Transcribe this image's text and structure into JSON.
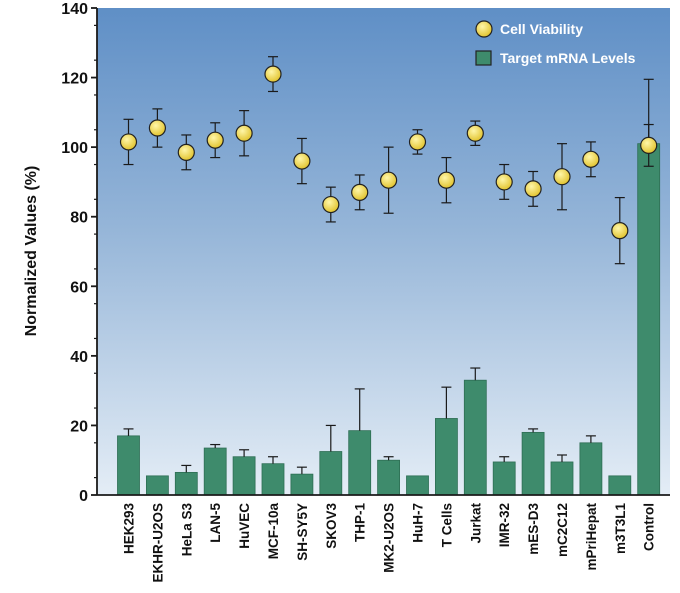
{
  "chart_data": {
    "type": "bar",
    "title": "",
    "xlabel": "",
    "ylabel": "Normalized Values (%)",
    "ylim": [
      0,
      140
    ],
    "yticks": [
      0,
      20,
      40,
      60,
      80,
      100,
      120,
      140
    ],
    "grid": false,
    "legend_position": "top-right",
    "categories": [
      "HEK293",
      "EKHR-U2OS",
      "HeLa S3",
      "LAN-5",
      "HuVEC",
      "MCF-10a",
      "SH-SY5Y",
      "SKOV3",
      "THP-1",
      "MK2-U2OS",
      "HuH-7",
      "T Cells",
      "Jurkat",
      "IMR-32",
      "mES-D3",
      "mC2C12",
      "mPriHepat",
      "m3T3L1",
      "Control"
    ],
    "series": [
      {
        "name": "Cell Viability",
        "kind": "scatter",
        "color": "#f0d648",
        "values": [
          101.5,
          105.5,
          98.5,
          102,
          104,
          121,
          96,
          83.5,
          87,
          90.5,
          101.5,
          90.5,
          104,
          90,
          88,
          91.5,
          96.5,
          76,
          100.5
        ],
        "error": [
          6.5,
          5.5,
          5,
          5,
          6.5,
          5,
          6.5,
          5,
          5,
          9.5,
          3.5,
          6.5,
          3.5,
          5,
          5,
          9.5,
          5,
          9.5,
          6
        ]
      },
      {
        "name": "Target mRNA Levels",
        "kind": "bar",
        "color": "#3e8b6c",
        "values": [
          17,
          5.5,
          6.5,
          13.5,
          11,
          9,
          6,
          12.5,
          18.5,
          10,
          5.5,
          22,
          33,
          9.5,
          18,
          9.5,
          15,
          5.5,
          101
        ],
        "error": [
          2,
          0,
          2,
          1,
          2,
          2,
          2,
          7.5,
          12,
          1,
          0,
          9,
          3.5,
          1.5,
          1,
          2,
          2,
          0,
          18.5
        ]
      }
    ]
  }
}
